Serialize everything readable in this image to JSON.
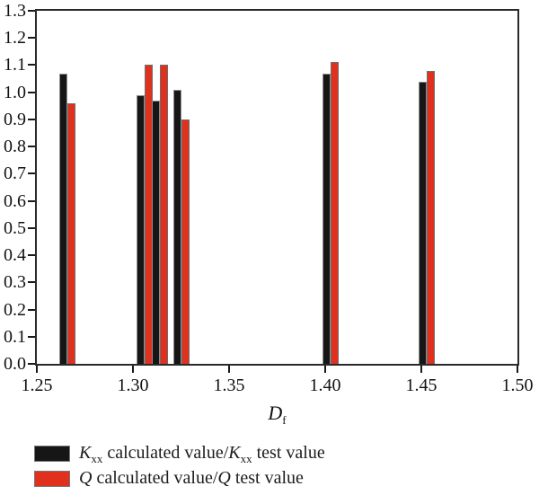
{
  "figure": {
    "background": "#ffffff",
    "axis_color": "#1a1a1a"
  },
  "axes": {
    "x_label_main": "D",
    "x_label_sub": "f"
  },
  "legend": {
    "row1": {
      "sym1": "K",
      "sub1": "xx",
      "text1": " calculated value/",
      "sym2": "K",
      "sub2": "xx",
      "text2": " test value",
      "color": "#161616"
    },
    "row2": {
      "sym1": "Q",
      "text1": " calculated value/",
      "sym2": "Q",
      "text2": " test value",
      "color": "#e0301e"
    }
  },
  "chart_data": {
    "type": "bar",
    "title": "",
    "xlabel": "Df",
    "ylabel": "",
    "xlim": [
      1.25,
      1.5
    ],
    "ylim": [
      0.0,
      1.3
    ],
    "grid": false,
    "legend_position": "bottom-left-outside",
    "x_ticks": [
      1.25,
      1.3,
      1.35,
      1.4,
      1.45,
      1.5
    ],
    "x_tick_labels": [
      "1.25",
      "1.30",
      "1.35",
      "1.40",
      "1.45",
      "1.50"
    ],
    "y_ticks": [
      0.0,
      0.1,
      0.2,
      0.3,
      0.4,
      0.5,
      0.6,
      0.7,
      0.8,
      0.9,
      1.0,
      1.1,
      1.2,
      1.3
    ],
    "y_tick_labels": [
      "0.0",
      "0.1",
      "0.2",
      "0.3",
      "0.4",
      "0.5",
      "0.6",
      "0.7",
      "0.8",
      "0.9",
      "1.0",
      "1.1",
      "1.2",
      "1.3"
    ],
    "x": [
      1.266,
      1.306,
      1.314,
      1.325,
      1.403,
      1.453
    ],
    "series": [
      {
        "name": "Kxx calculated value/Kxx test value",
        "color": "#161616",
        "values": [
          1.07,
          0.99,
          0.97,
          1.01,
          1.07,
          1.04
        ]
      },
      {
        "name": "Q calculated value/Q test value",
        "color": "#e0301e",
        "values": [
          0.96,
          1.1,
          1.1,
          0.9,
          1.11,
          1.08
        ]
      }
    ]
  }
}
